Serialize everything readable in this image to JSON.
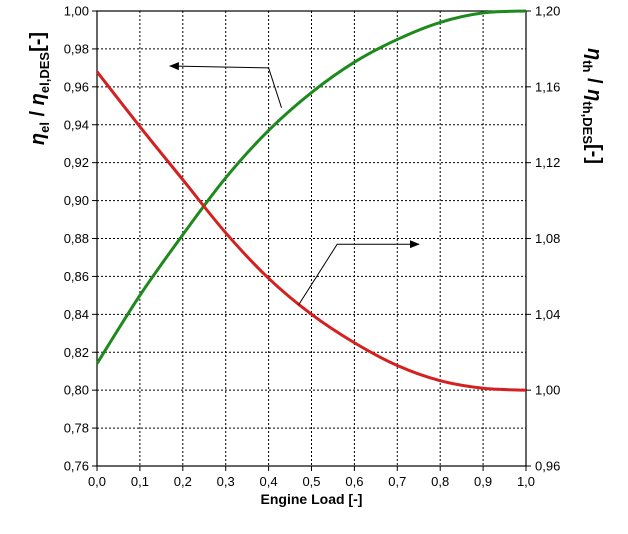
{
  "chart_data": {
    "type": "line",
    "xlabel": "Engine Load [-]",
    "ylabel_left": {
      "symbol": "η",
      "sub1": "el",
      "sep": " / ",
      "symbol2": "η",
      "sub2": "el,DES",
      "unit": "[-]"
    },
    "ylabel_right": {
      "symbol": "η",
      "sub1": "th",
      "sep": " / ",
      "symbol2": "η",
      "sub2": "th,DES",
      "unit": "[-]"
    },
    "xlim": [
      0,
      1
    ],
    "ylim_left": [
      0.76,
      1.0
    ],
    "ylim_right": [
      0.96,
      1.2
    ],
    "x_ticks": [
      "0,0",
      "0,1",
      "0,2",
      "0,3",
      "0,4",
      "0,5",
      "0,6",
      "0,7",
      "0,8",
      "0,9",
      "1,0"
    ],
    "y_ticks_left": [
      "0,76",
      "0,78",
      "0,80",
      "0,82",
      "0,84",
      "0,86",
      "0,88",
      "0,90",
      "0,92",
      "0,94",
      "0,96",
      "0,98",
      "1,00"
    ],
    "y_ticks_right": [
      "0,96",
      "1,00",
      "1,04",
      "1,08",
      "1,12",
      "1,16",
      "1,20"
    ],
    "grid": true,
    "series": [
      {
        "axis": "left",
        "color": "#1e8a1e",
        "x": [
          0.0,
          0.1,
          0.2,
          0.3,
          0.4,
          0.5,
          0.6,
          0.7,
          0.8,
          0.9,
          1.0
        ],
        "y": [
          0.814,
          0.85,
          0.882,
          0.912,
          0.937,
          0.957,
          0.973,
          0.985,
          0.994,
          0.999,
          1.0
        ]
      },
      {
        "axis": "right",
        "color": "#d42020",
        "x": [
          0.0,
          0.1,
          0.2,
          0.3,
          0.4,
          0.5,
          0.6,
          0.7,
          0.8,
          0.9,
          1.0
        ],
        "y": [
          1.168,
          1.139,
          1.111,
          1.083,
          1.059,
          1.04,
          1.025,
          1.013,
          1.005,
          1.001,
          1.0
        ]
      }
    ],
    "annotations": [
      {
        "target": "green",
        "direction": "left",
        "points": [
          [
            0.43,
            0.949
          ],
          [
            0.4,
            0.97
          ],
          [
            0.17,
            0.971
          ]
        ]
      },
      {
        "target": "red",
        "direction": "right",
        "points": [
          [
            0.47,
            1.045
          ],
          [
            0.56,
            1.077
          ],
          [
            0.75,
            1.077
          ]
        ]
      }
    ]
  }
}
